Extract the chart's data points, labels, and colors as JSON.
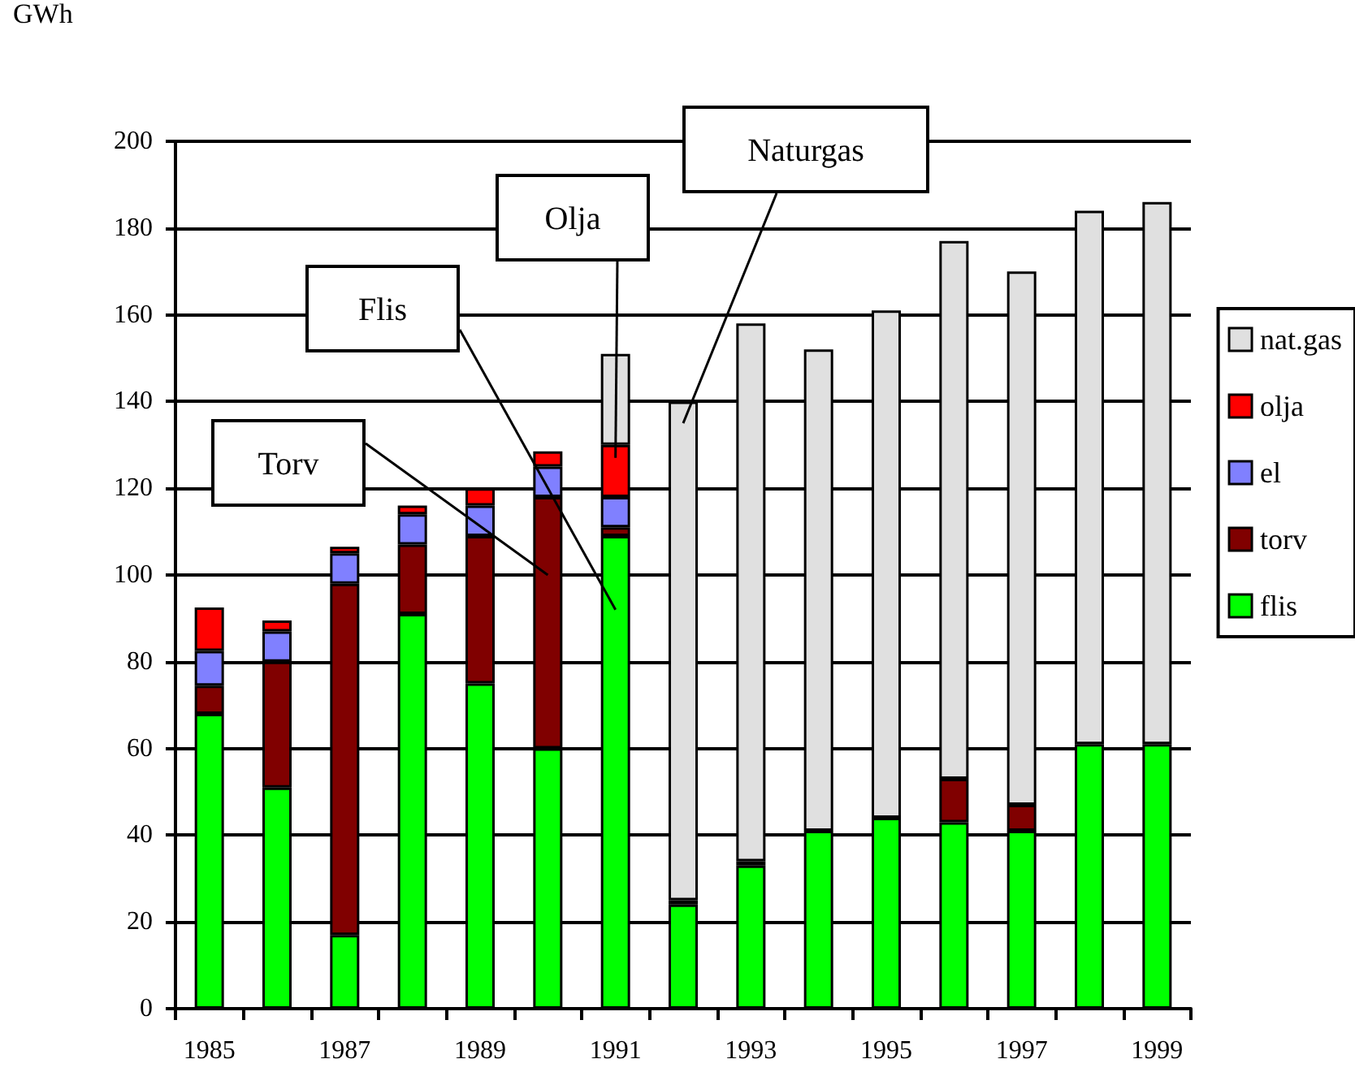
{
  "chart_data": {
    "type": "bar",
    "stacked": true,
    "ylabel": "GWh",
    "categories": [
      "1985",
      null,
      "1987",
      null,
      "1989",
      null,
      "1991",
      null,
      "1993",
      null,
      "1995",
      null,
      "1997",
      null,
      "1999"
    ],
    "series": [
      {
        "name": "flis",
        "color": "#00ff00",
        "values": [
          68,
          51,
          17,
          91,
          75,
          60,
          109,
          24,
          33,
          41,
          44,
          43,
          41,
          61,
          61
        ]
      },
      {
        "name": "torv",
        "color": "#800000",
        "values": [
          6.5,
          29,
          81,
          16,
          34,
          58,
          2,
          1,
          1,
          null,
          null,
          10,
          6,
          null,
          null
        ]
      },
      {
        "name": "el",
        "color": "#8080ff",
        "values": [
          8,
          7,
          7,
          7,
          7,
          7,
          7,
          null,
          null,
          null,
          null,
          null,
          null,
          null,
          null
        ]
      },
      {
        "name": "olja",
        "color": "#ff0000",
        "values": [
          10,
          2.5,
          1.5,
          2,
          4,
          3.5,
          12,
          null,
          null,
          null,
          null,
          null,
          null,
          null,
          null
        ]
      },
      {
        "name": "nat.gas",
        "color": "#e0e0e0",
        "values": [
          null,
          null,
          null,
          null,
          null,
          null,
          21,
          115,
          124,
          111,
          117,
          124,
          123,
          123,
          125
        ]
      }
    ],
    "ylim": [
      0,
      200
    ],
    "yticks": [
      0,
      20,
      40,
      60,
      80,
      100,
      120,
      140,
      160,
      180,
      200
    ],
    "grid": "y",
    "legend": "right",
    "annotations": [
      "Torv",
      "Flis",
      "Olja",
      "Naturgas"
    ]
  }
}
